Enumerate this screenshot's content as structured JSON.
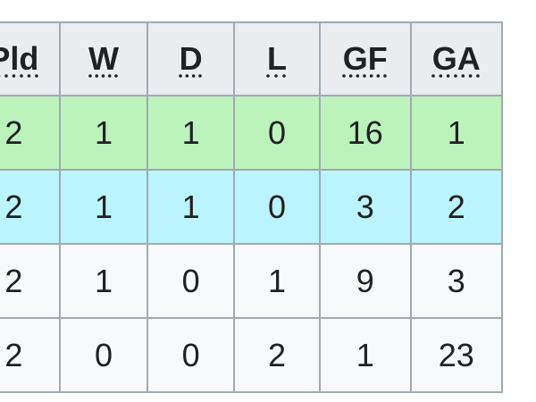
{
  "table": {
    "headers": [
      "Pld",
      "W",
      "D",
      "L",
      "GF",
      "GA"
    ],
    "rows": [
      {
        "highlight": "#bbf3bb",
        "cells": [
          "2",
          "1",
          "1",
          "0",
          "16",
          "1"
        ]
      },
      {
        "highlight": "#bbf3ff",
        "cells": [
          "2",
          "1",
          "1",
          "0",
          "3",
          "2"
        ]
      },
      {
        "highlight": "#f8f9fa",
        "cells": [
          "2",
          "1",
          "0",
          "1",
          "9",
          "3"
        ]
      },
      {
        "highlight": "#f8f9fa",
        "cells": [
          "2",
          "0",
          "0",
          "2",
          "1",
          "23"
        ]
      }
    ]
  },
  "colors": {
    "header_bg": "#eaecf0",
    "border": "#a2a9b1",
    "text": "#202122"
  }
}
